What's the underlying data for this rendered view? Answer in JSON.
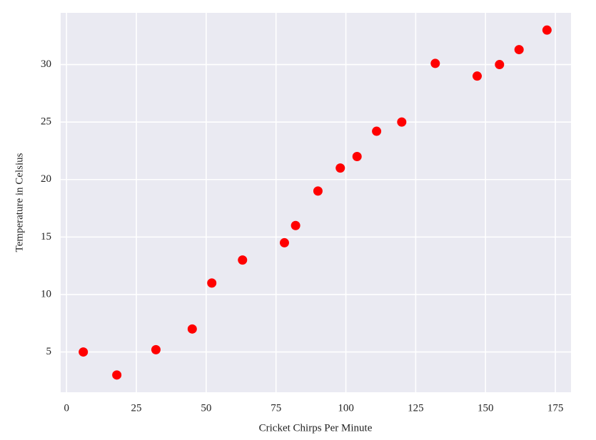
{
  "chart_data": {
    "type": "scatter",
    "x_label": "Cricket Chirps Per Minute",
    "y_label": "Temperature in Celsius",
    "x": [
      6,
      18,
      32,
      45,
      52,
      63,
      78,
      82,
      90,
      98,
      104,
      111,
      120,
      132,
      147,
      155,
      162,
      172
    ],
    "values": [
      5,
      3,
      5.2,
      7,
      11,
      13,
      14.5,
      16,
      19,
      21,
      22,
      24.2,
      25,
      30.1,
      29,
      30,
      31.3,
      33
    ],
    "color": "#ff0000",
    "xlim": [
      -2.1,
      180.6
    ],
    "xticks": [
      0,
      25,
      50,
      75,
      100,
      125,
      150,
      175
    ],
    "ylim": [
      1.5,
      34.5
    ],
    "yticks": [
      5,
      10,
      15,
      20,
      25,
      30
    ],
    "grid": true
  }
}
